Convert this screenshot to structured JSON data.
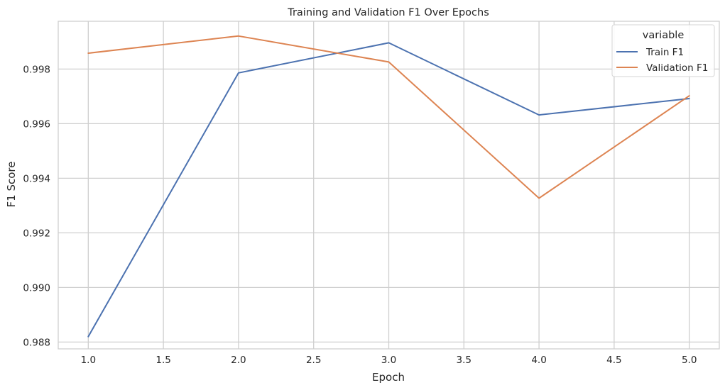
{
  "chart_data": {
    "type": "line",
    "title": "Training and Validation F1 Over Epochs",
    "xlabel": "Epoch",
    "ylabel": "F1 Score",
    "xlim": [
      0.8,
      5.2
    ],
    "ylim": [
      0.98775,
      0.99975
    ],
    "xticks": [
      1.0,
      1.5,
      2.0,
      2.5,
      3.0,
      3.5,
      4.0,
      4.5,
      5.0
    ],
    "xtick_labels": [
      "1.0",
      "1.5",
      "2.0",
      "2.5",
      "3.0",
      "3.5",
      "4.0",
      "4.5",
      "5.0"
    ],
    "yticks": [
      0.988,
      0.99,
      0.992,
      0.994,
      0.996,
      0.998
    ],
    "ytick_labels": [
      "0.988",
      "0.990",
      "0.992",
      "0.994",
      "0.996",
      "0.998"
    ],
    "grid": true,
    "legend": {
      "title": "variable",
      "position": "top-right"
    },
    "series": [
      {
        "name": "Train F1",
        "color": "#4c72b0",
        "x": [
          1,
          2,
          3,
          4,
          5
        ],
        "values": [
          0.9882,
          0.99786,
          0.99896,
          0.99632,
          0.99692
        ]
      },
      {
        "name": "Validation F1",
        "color": "#dd8452",
        "x": [
          1,
          2,
          3,
          4,
          5
        ],
        "values": [
          0.99858,
          0.99921,
          0.99826,
          0.99327,
          0.99702
        ]
      }
    ]
  }
}
